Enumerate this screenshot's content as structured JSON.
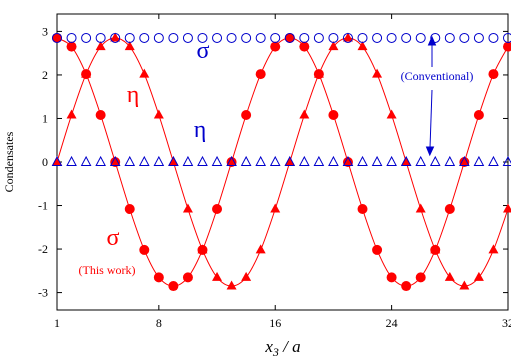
{
  "chart_data": {
    "type": "scatter",
    "xlabel": "x₃ / a",
    "ylabel": "Condensates",
    "xlim": [
      1,
      32
    ],
    "ylim": [
      -3.4,
      3.4
    ],
    "xticks": [
      "1",
      "8",
      "16",
      "24",
      "32"
    ],
    "yticks": [
      "3",
      "2",
      "1",
      "0",
      "-1",
      "-2",
      "-3"
    ],
    "grid": false,
    "series": [
      {
        "name": "σ",
        "group": "This work",
        "color": "#ff0000",
        "marker": "filled-circle",
        "x": [
          1,
          2,
          3,
          4,
          5,
          6,
          7,
          8,
          9,
          10,
          11,
          12,
          13,
          14,
          15,
          16,
          17,
          18,
          19,
          20,
          21,
          22,
          23,
          24,
          25,
          26,
          27,
          28,
          29,
          30,
          31,
          32
        ],
        "y": [
          2.85,
          2.65,
          2.02,
          1.08,
          0.0,
          -1.08,
          -2.02,
          -2.65,
          -2.85,
          -2.65,
          -2.02,
          -1.08,
          0.0,
          1.08,
          2.02,
          2.65,
          2.85,
          2.65,
          2.02,
          1.08,
          0.0,
          -1.08,
          -2.02,
          -2.65,
          -2.85,
          -2.65,
          -2.02,
          -1.08,
          0.0,
          1.08,
          2.02,
          2.65
        ]
      },
      {
        "name": "η",
        "group": "This work",
        "color": "#ff0000",
        "marker": "filled-triangle",
        "x": [
          1,
          2,
          3,
          4,
          5,
          6,
          7,
          8,
          9,
          10,
          11,
          12,
          13,
          14,
          15,
          16,
          17,
          18,
          19,
          20,
          21,
          22,
          23,
          24,
          25,
          26,
          27,
          28,
          29,
          30,
          31,
          32
        ],
        "y": [
          0.0,
          1.08,
          2.02,
          2.65,
          2.85,
          2.65,
          2.02,
          1.08,
          0.0,
          -1.08,
          -2.02,
          -2.65,
          -2.85,
          -2.65,
          -2.02,
          -1.08,
          0.0,
          1.08,
          2.02,
          2.65,
          2.85,
          2.65,
          2.02,
          1.08,
          0.0,
          -1.08,
          -2.02,
          -2.65,
          -2.85,
          -2.65,
          -2.02,
          -1.08
        ]
      },
      {
        "name": "σ",
        "group": "Conventional",
        "color": "#0000cc",
        "marker": "open-circle",
        "x": [
          1,
          2,
          3,
          4,
          5,
          6,
          7,
          8,
          9,
          10,
          11,
          12,
          13,
          14,
          15,
          16,
          17,
          18,
          19,
          20,
          21,
          22,
          23,
          24,
          25,
          26,
          27,
          28,
          29,
          30,
          31,
          32
        ],
        "y": [
          2.85,
          2.85,
          2.85,
          2.85,
          2.85,
          2.85,
          2.85,
          2.85,
          2.85,
          2.85,
          2.85,
          2.85,
          2.85,
          2.85,
          2.85,
          2.85,
          2.85,
          2.85,
          2.85,
          2.85,
          2.85,
          2.85,
          2.85,
          2.85,
          2.85,
          2.85,
          2.85,
          2.85,
          2.85,
          2.85,
          2.85,
          2.85
        ]
      },
      {
        "name": "η",
        "group": "Conventional",
        "color": "#0000cc",
        "marker": "open-triangle",
        "x": [
          1,
          2,
          3,
          4,
          5,
          6,
          7,
          8,
          9,
          10,
          11,
          12,
          13,
          14,
          15,
          16,
          17,
          18,
          19,
          20,
          21,
          22,
          23,
          24,
          25,
          26,
          27,
          28,
          29,
          30,
          31,
          32
        ],
        "y": [
          0,
          0,
          0,
          0,
          0,
          0,
          0,
          0,
          0,
          0,
          0,
          0,
          0,
          0,
          0,
          0,
          0,
          0,
          0,
          0,
          0,
          0,
          0,
          0,
          0,
          0,
          0,
          0,
          0,
          0,
          0,
          0
        ]
      }
    ],
    "annotations": {
      "this_work": "(This work)",
      "conventional": "(Conventional)",
      "sigma": "σ",
      "eta": "η"
    }
  }
}
